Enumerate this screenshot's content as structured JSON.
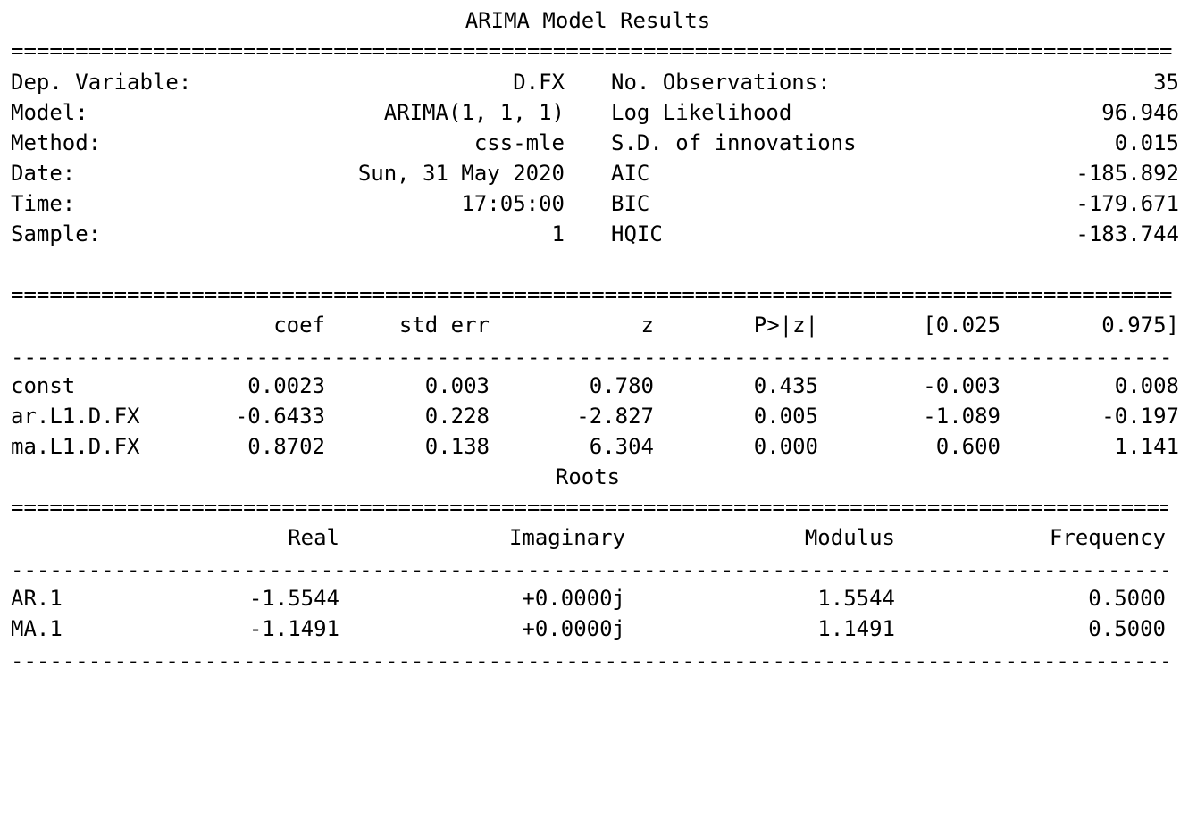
{
  "title": "ARIMA Model Results",
  "rules": {
    "double": "==========================================================================================",
    "single": "------------------------------------------------------------------------------------------"
  },
  "summary": {
    "rows": [
      {
        "label1": "Dep. Variable:",
        "value1": "D.FX",
        "label2": "No. Observations:",
        "value2": "35"
      },
      {
        "label1": "Model:",
        "value1": "ARIMA(1, 1, 1)",
        "label2": "Log Likelihood",
        "value2": "96.946"
      },
      {
        "label1": "Method:",
        "value1": "css-mle",
        "label2": "S.D. of innovations",
        "value2": "0.015"
      },
      {
        "label1": "Date:",
        "value1": "Sun, 31 May 2020",
        "label2": "AIC",
        "value2": "-185.892"
      },
      {
        "label1": "Time:",
        "value1": "17:05:00",
        "label2": "BIC",
        "value2": "-179.671"
      },
      {
        "label1": "Sample:",
        "value1": "1",
        "label2": "HQIC",
        "value2": "-183.744"
      }
    ]
  },
  "coef_table": {
    "headers": [
      "",
      "coef",
      "std err",
      "z",
      "P>|z|",
      "[0.025",
      "0.975]"
    ],
    "rows": [
      [
        "const",
        "0.0023",
        "0.003",
        "0.780",
        "0.435",
        "-0.003",
        "0.008"
      ],
      [
        "ar.L1.D.FX",
        "-0.6433",
        "0.228",
        "-2.827",
        "0.005",
        "-1.089",
        "-0.197"
      ],
      [
        "ma.L1.D.FX",
        "0.8702",
        "0.138",
        "6.304",
        "0.000",
        "0.600",
        "1.141"
      ]
    ]
  },
  "roots": {
    "title": "Roots",
    "headers": [
      "",
      "Real",
      "Imaginary",
      "Modulus",
      "Frequency"
    ],
    "rows": [
      [
        "AR.1",
        "-1.5544",
        "+0.0000j",
        "1.5544",
        "0.5000"
      ],
      [
        "MA.1",
        "-1.1491",
        "+0.0000j",
        "1.1491",
        "0.5000"
      ]
    ]
  }
}
